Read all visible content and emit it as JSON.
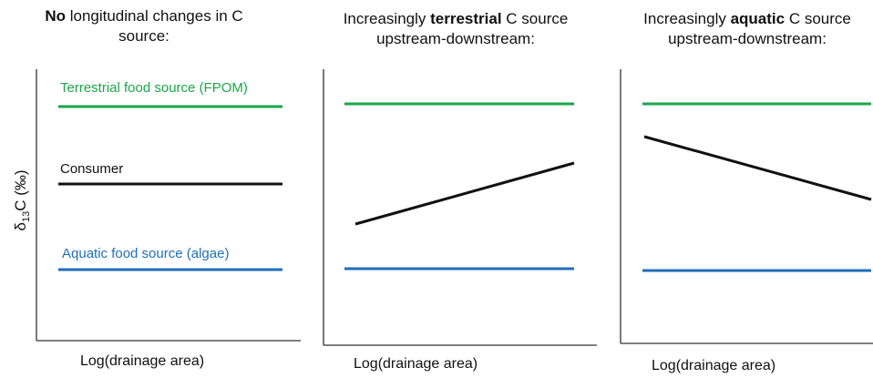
{
  "panels": [
    {
      "title_bold": "No",
      "title_rest_line1": " longitudinal changes in C",
      "title_line2": "source:",
      "xlabel": "Log(drainage area)"
    },
    {
      "title_line1_pre": "Increasingly ",
      "title_bold": "terrestrial",
      "title_line1_post": " C source",
      "title_line2": "upstream-downstream:",
      "xlabel": "Log(drainage area)"
    },
    {
      "title_line1_pre": "Increasingly ",
      "title_bold": "aquatic",
      "title_line1_post": " C source",
      "title_line2": "upstream-downstream:",
      "xlabel": "Log(drainage area)"
    }
  ],
  "ylabel": {
    "prefix": "δ",
    "sub": "13",
    "rest": "C  (‰)"
  },
  "series_labels": {
    "terrestrial": "Terrestrial food source (FPOM)",
    "consumer": "Consumer",
    "aquatic": "Aquatic food source (algae)"
  },
  "colors": {
    "terrestrial": "#1aa64a",
    "consumer": "#111111",
    "aquatic": "#1e6fb8",
    "axis": "#333333"
  },
  "trends": {
    "panel1": {
      "terrestrial": "flat",
      "consumer": "flat",
      "aquatic": "flat"
    },
    "panel2": {
      "terrestrial": "flat",
      "consumer": "increasing",
      "aquatic": "flat"
    },
    "panel3": {
      "terrestrial": "flat",
      "consumer": "decreasing",
      "aquatic": "flat"
    }
  }
}
